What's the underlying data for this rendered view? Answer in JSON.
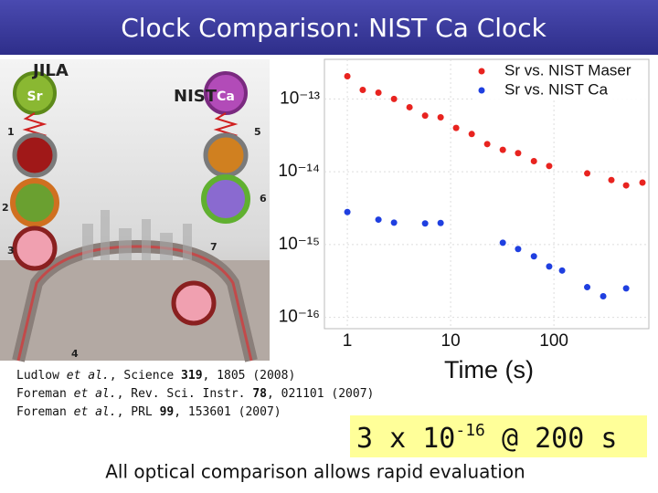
{
  "title": "Clock Comparison: NIST Ca Clock",
  "diagram": {
    "labels": [
      "JILA",
      "NIST",
      "Sr",
      "Ca",
      "1",
      "2",
      "3",
      "4",
      "5",
      "6",
      "7"
    ]
  },
  "chart_data": {
    "type": "scatter",
    "x_label": "Time (s)",
    "xlim": [
      0.6,
      830
    ],
    "ylim": [
      7e-17,
      3.5e-13
    ],
    "xscale": "log",
    "yscale": "log",
    "grid": true,
    "legend": "upper right",
    "xticks": [
      1,
      10,
      100
    ],
    "yticks": [
      {
        "value": 1e-13,
        "label": "10⁻¹³"
      },
      {
        "value": 1e-14,
        "label": "10⁻¹⁴"
      },
      {
        "value": 1e-15,
        "label": "10⁻¹⁵"
      },
      {
        "value": 1e-16,
        "label": "10⁻¹⁶"
      }
    ],
    "series": [
      {
        "name": "Sr vs. NIST Maser",
        "color": "#e8231f",
        "x": [
          1,
          1.41,
          2,
          2.83,
          4,
          5.66,
          8,
          11.3,
          16,
          22.6,
          32,
          45,
          64,
          90,
          210,
          360,
          500,
          720
        ],
        "values": [
          2.05e-13,
          1.33e-13,
          1.22e-13,
          1e-13,
          7.7e-14,
          5.9e-14,
          5.6e-14,
          4e-14,
          3.3e-14,
          2.4e-14,
          2e-14,
          1.8e-14,
          1.4e-14,
          1.2e-14,
          9.5e-15,
          7.7e-15,
          6.5e-15,
          7.1e-15
        ]
      },
      {
        "name": "Sr vs. NIST Ca",
        "color": "#1f3fe0",
        "x": [
          1,
          2,
          2.83,
          5.66,
          8,
          32,
          45,
          64,
          90,
          120,
          210,
          300,
          500
        ],
        "values": [
          2.8e-15,
          2.2e-15,
          2e-15,
          1.95e-15,
          1.98e-15,
          1.06e-15,
          8.7e-16,
          6.9e-16,
          5e-16,
          4.4e-16,
          2.6e-16,
          1.95e-16,
          2.5e-16
        ]
      }
    ]
  },
  "references": [
    [
      "Ludlow ",
      "et al.",
      ", Science ",
      "319",
      ", 1805 (2008)"
    ],
    [
      "Foreman ",
      "et al.",
      ", Rev. Sci. Instr. ",
      "78",
      ", 021101 (2007)"
    ],
    [
      "Foreman ",
      "et al.",
      ", PRL ",
      "99",
      ", 153601 (2007)"
    ]
  ],
  "result": {
    "base": "3 x 10",
    "exponent": "-16",
    "rest": " @ 200 s"
  },
  "caption": "All optical comparison allows rapid evaluation"
}
